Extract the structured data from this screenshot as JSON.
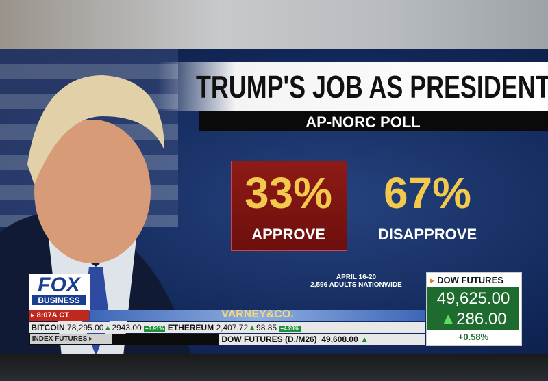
{
  "graphic": {
    "title": "TRUMP'S JOB AS PRESIDENT",
    "subtitle": "AP-NORC POLL",
    "approve": {
      "value": "33%",
      "label": "APPROVE"
    },
    "disapprove": {
      "value": "67%",
      "label": "DISAPPROVE"
    },
    "note": [
      "APRIL 16-20",
      "2,596 ADULTS NATIONWIDE"
    ]
  },
  "network": {
    "logo": "FOX",
    "sublogo": "BUSINESS",
    "time": "8:07A CT",
    "show": "VARNEY&CO."
  },
  "dow_panel": {
    "label": "DOW FUTURES",
    "value": "49,625.00",
    "change": "286.00",
    "percent": "+0.58%"
  },
  "ticker": {
    "items": [
      {
        "name": "BITCOIN",
        "price": "78,295.00",
        "change": "2943.00",
        "percent": "+3.91%"
      },
      {
        "name": "ETHEREUM",
        "price": "2,407.72",
        "change": "98.85",
        "percent": "+4.28%"
      }
    ],
    "section": "INDEX FUTURES",
    "index_name": "DOW FUTURES (D./M26)",
    "index_value": "49,608.00"
  }
}
